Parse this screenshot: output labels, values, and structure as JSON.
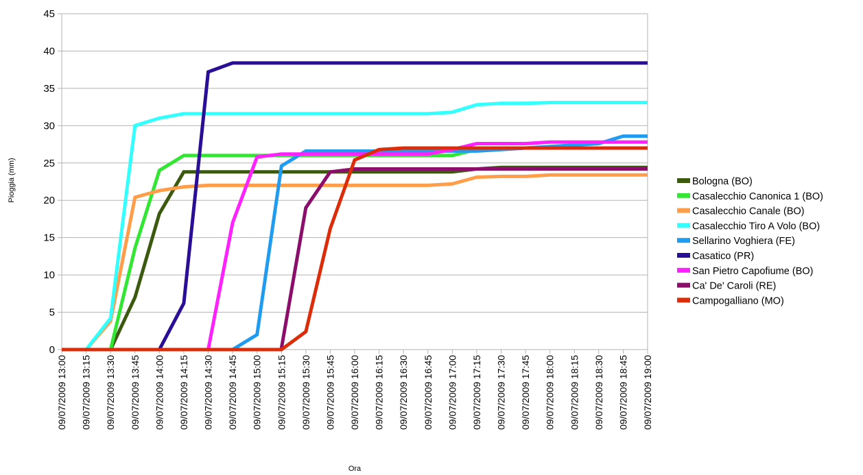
{
  "chart_data": {
    "type": "line",
    "xlabel": "Ora",
    "ylabel": "Pioggia (mm)",
    "ylim": [
      0,
      45
    ],
    "yticks": [
      0,
      5,
      10,
      15,
      20,
      25,
      30,
      35,
      40,
      45
    ],
    "grid": true,
    "legend": "right",
    "x": [
      "09/07/2009 13:00",
      "09/07/2009 13:15",
      "09/07/2009 13:30",
      "09/07/2009 13:45",
      "09/07/2009 14:00",
      "09/07/2009 14:15",
      "09/07/2009 14:30",
      "09/07/2009 14:45",
      "09/07/2009 15:00",
      "09/07/2009 15:15",
      "09/07/2009 15:30",
      "09/07/2009 15:45",
      "09/07/2009 16:00",
      "09/07/2009 16:15",
      "09/07/2009 16:30",
      "09/07/2009 16:45",
      "09/07/2009 17:00",
      "09/07/2009 17:15",
      "09/07/2009 17:30",
      "09/07/2009 17:45",
      "09/07/2009 18:00",
      "09/07/2009 18:15",
      "09/07/2009 18:30",
      "09/07/2009 18:45",
      "09/07/2009 19:00"
    ],
    "series": [
      {
        "name": "Bologna (BO)",
        "color": "#3c5a0f",
        "values": [
          null,
          null,
          0,
          7,
          18.2,
          23.8,
          23.8,
          23.8,
          23.8,
          23.8,
          23.8,
          23.8,
          23.8,
          23.8,
          23.8,
          23.8,
          23.8,
          24.2,
          24.4,
          24.4,
          24.4,
          24.4,
          24.4,
          24.4,
          24.4
        ]
      },
      {
        "name": "Casalecchio Canonica 1 (BO)",
        "color": "#33e633",
        "values": [
          null,
          null,
          0,
          13.6,
          24,
          26,
          26,
          26,
          26,
          26,
          26,
          26,
          26,
          26,
          26,
          26,
          26,
          26.8,
          27,
          27,
          27,
          27,
          27,
          27,
          27
        ]
      },
      {
        "name": "Casalecchio Canale (BO)",
        "color": "#ff9e4a",
        "values": [
          null,
          0,
          3.8,
          20.4,
          21.3,
          21.8,
          22,
          22,
          22,
          22,
          22,
          22,
          22,
          22,
          22,
          22,
          22.2,
          23.1,
          23.2,
          23.2,
          23.4,
          23.4,
          23.4,
          23.4,
          23.4
        ]
      },
      {
        "name": "Casalecchio Tiro A Volo (BO)",
        "color": "#33ffff",
        "values": [
          null,
          0,
          4.2,
          30,
          31,
          31.6,
          31.6,
          31.6,
          31.6,
          31.6,
          31.6,
          31.6,
          31.6,
          31.6,
          31.6,
          31.6,
          31.8,
          32.8,
          33,
          33,
          33.1,
          33.1,
          33.1,
          33.1,
          33.1
        ]
      },
      {
        "name": "Sellarino Voghiera (FE)",
        "color": "#1f9bf0",
        "values": [
          null,
          null,
          null,
          null,
          null,
          null,
          null,
          0,
          2,
          24.6,
          26.6,
          26.6,
          26.6,
          26.6,
          26.6,
          26.6,
          26.6,
          26.6,
          26.8,
          27,
          27.2,
          27.4,
          27.6,
          28.6,
          28.6
        ]
      },
      {
        "name": "Casatico (PR)",
        "color": "#2a0e95",
        "values": [
          null,
          null,
          null,
          null,
          0,
          6.2,
          37.2,
          38.4,
          38.4,
          38.4,
          38.4,
          38.4,
          38.4,
          38.4,
          38.4,
          38.4,
          38.4,
          38.4,
          38.4,
          38.4,
          38.4,
          38.4,
          38.4,
          38.4,
          38.4
        ]
      },
      {
        "name": "San Pietro Capofiume (BO)",
        "color": "#ff22ff",
        "values": [
          null,
          null,
          null,
          null,
          null,
          null,
          0,
          17,
          25.8,
          26.2,
          26.2,
          26.2,
          26.2,
          26.2,
          26.2,
          26.2,
          26.8,
          27.6,
          27.6,
          27.6,
          27.8,
          27.8,
          27.8,
          27.8,
          27.8
        ]
      },
      {
        "name": "Ca' De' Caroli (RE)",
        "color": "#8b0f6a",
        "values": [
          null,
          null,
          null,
          null,
          null,
          null,
          null,
          null,
          null,
          0.2,
          19,
          23.8,
          24.2,
          24.2,
          24.2,
          24.2,
          24.2,
          24.2,
          24.2,
          24.2,
          24.2,
          24.2,
          24.2,
          24.2,
          24.2
        ]
      },
      {
        "name": "Campogalliano (MO)",
        "color": "#dc2d0a",
        "values": [
          0,
          0,
          0,
          0,
          0,
          0,
          0,
          0,
          0,
          0,
          2.4,
          16.2,
          25.4,
          26.8,
          27,
          27,
          27,
          27,
          27,
          27,
          27,
          27,
          27,
          27,
          27
        ]
      }
    ]
  }
}
